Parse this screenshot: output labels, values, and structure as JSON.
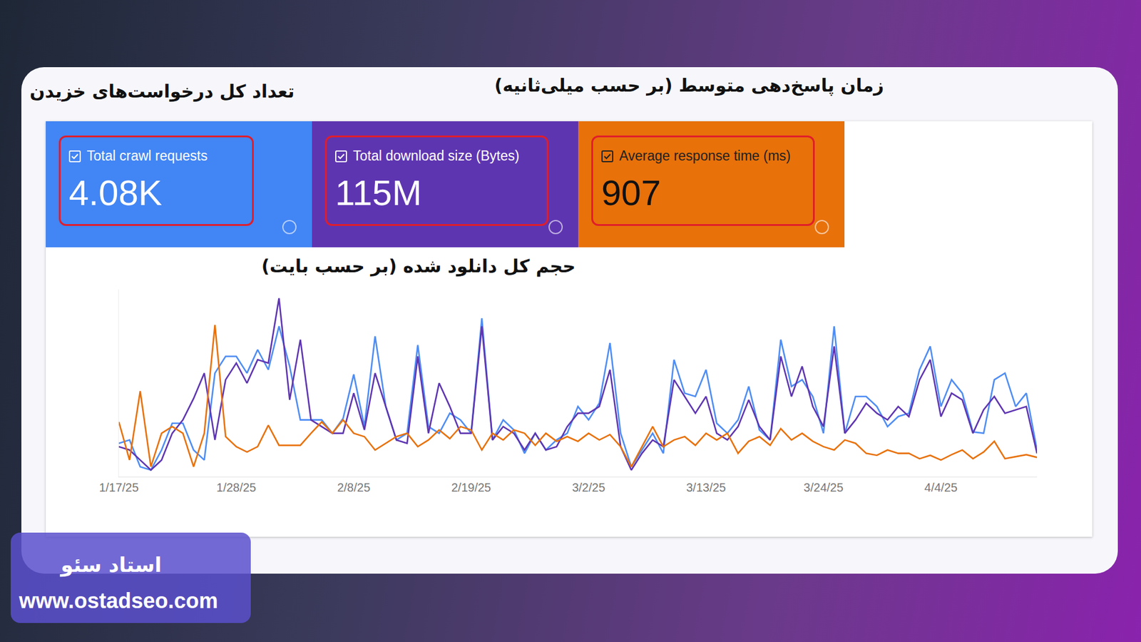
{
  "chart_data": {
    "type": "line",
    "x": [
      "2025-01-17",
      "2025-01-18",
      "2025-01-19",
      "2025-01-20",
      "2025-01-21",
      "2025-01-22",
      "2025-01-23",
      "2025-01-24",
      "2025-01-25",
      "2025-01-26",
      "2025-01-27",
      "2025-01-28",
      "2025-01-29",
      "2025-01-30",
      "2025-01-31",
      "2025-02-01",
      "2025-02-02",
      "2025-02-03",
      "2025-02-04",
      "2025-02-05",
      "2025-02-06",
      "2025-02-07",
      "2025-02-08",
      "2025-02-09",
      "2025-02-10",
      "2025-02-11",
      "2025-02-12",
      "2025-02-13",
      "2025-02-14",
      "2025-02-15",
      "2025-02-16",
      "2025-02-17",
      "2025-02-18",
      "2025-02-19",
      "2025-02-20",
      "2025-02-21",
      "2025-02-22",
      "2025-02-23",
      "2025-02-24",
      "2025-02-25",
      "2025-02-26",
      "2025-02-27",
      "2025-02-28",
      "2025-03-01",
      "2025-03-02",
      "2025-03-03",
      "2025-03-04",
      "2025-03-05",
      "2025-03-06",
      "2025-03-07",
      "2025-03-08",
      "2025-03-09",
      "2025-03-10",
      "2025-03-11",
      "2025-03-12",
      "2025-03-13",
      "2025-03-14",
      "2025-03-15",
      "2025-03-16",
      "2025-03-17",
      "2025-03-18",
      "2025-03-19",
      "2025-03-20",
      "2025-03-21",
      "2025-03-22",
      "2025-03-23",
      "2025-03-24",
      "2025-03-25",
      "2025-03-26",
      "2025-03-27",
      "2025-03-28",
      "2025-03-29",
      "2025-03-30",
      "2025-03-31",
      "2025-04-01",
      "2025-04-02",
      "2025-04-03",
      "2025-04-04",
      "2025-04-05",
      "2025-04-06",
      "2025-04-07",
      "2025-04-08",
      "2025-04-09",
      "2025-04-10",
      "2025-04-11",
      "2025-04-12",
      "2025-04-13"
    ],
    "series": [
      {
        "name": "Total crawl requests",
        "color": "#4e8df5",
        "values": [
          50,
          55,
          15,
          10,
          40,
          80,
          80,
          40,
          25,
          155,
          180,
          180,
          155,
          190,
          160,
          225,
          165,
          85,
          85,
          85,
          65,
          87,
          153,
          75,
          210,
          105,
          55,
          65,
          197,
          75,
          65,
          95,
          85,
          65,
          237,
          55,
          85,
          70,
          35,
          65,
          40,
          55,
          65,
          105,
          85,
          110,
          200,
          65,
          15,
          40,
          65,
          35,
          175,
          125,
          120,
          160,
          80,
          65,
          85,
          135,
          70,
          55,
          205,
          135,
          145,
          120,
          65,
          225,
          65,
          120,
          120,
          105,
          75,
          90,
          95,
          160,
          195,
          105,
          145,
          125,
          67,
          65,
          145,
          155,
          105,
          125,
          40
        ]
      },
      {
        "name": "Total download size (Bytes)",
        "color": "#5e35b1",
        "values": [
          45,
          40,
          25,
          10,
          25,
          65,
          85,
          117,
          155,
          55,
          145,
          170,
          140,
          175,
          170,
          267,
          115,
          205,
          85,
          75,
          65,
          65,
          125,
          70,
          155,
          105,
          55,
          50,
          180,
          65,
          140,
          105,
          65,
          65,
          225,
          55,
          75,
          65,
          40,
          65,
          40,
          45,
          75,
          95,
          95,
          105,
          160,
          45,
          10,
          35,
          55,
          45,
          145,
          120,
          95,
          120,
          65,
          55,
          75,
          115,
          75,
          55,
          180,
          120,
          165,
          105,
          75,
          195,
          65,
          85,
          110,
          95,
          85,
          105,
          90,
          145,
          175,
          90,
          125,
          115,
          65,
          100,
          120,
          95,
          100,
          105,
          35
        ]
      },
      {
        "name": "Average response time (ms)",
        "color": "#e8710a",
        "values": [
          82,
          25,
          128,
          15,
          65,
          75,
          65,
          15,
          65,
          227,
          60,
          45,
          37,
          45,
          77,
          47,
          47,
          47,
          65,
          82,
          65,
          85,
          65,
          60,
          40,
          50,
          60,
          65,
          45,
          55,
          70,
          57,
          75,
          70,
          40,
          65,
          55,
          70,
          65,
          47,
          65,
          53,
          60,
          53,
          65,
          55,
          63,
          45,
          15,
          45,
          75,
          45,
          55,
          60,
          47,
          65,
          55,
          65,
          35,
          53,
          60,
          47,
          72,
          55,
          65,
          53,
          45,
          40,
          55,
          50,
          35,
          32,
          40,
          35,
          35,
          27,
          32,
          25,
          33,
          40,
          27,
          37,
          53,
          27,
          30,
          33,
          29
        ]
      }
    ],
    "xlim": [
      "2025-01-17",
      "2025-04-13"
    ],
    "xticks": [
      {
        "value": "2025-01-17",
        "label": "1/17/25"
      },
      {
        "value": "2025-01-28",
        "label": "1/28/25"
      },
      {
        "value": "2025-02-08",
        "label": "2/8/25"
      },
      {
        "value": "2025-02-19",
        "label": "2/19/25"
      },
      {
        "value": "2025-03-02",
        "label": "3/2/25"
      },
      {
        "value": "2025-03-13",
        "label": "3/13/25"
      },
      {
        "value": "2025-03-24",
        "label": "3/24/25"
      },
      {
        "value": "2025-04-04",
        "label": "4/4/25"
      }
    ],
    "ylim": [
      0,
      280
    ],
    "yticks": [],
    "grid": false,
    "tick_labels": "x"
  },
  "tiles": [
    {
      "total": "4.08K",
      "caption": "تعداد کل درخواست‌های خزیدن"
    },
    {
      "total": "115M",
      "caption": "حجم کل دانلود شده (بر حسب بایت)"
    },
    {
      "total": "907",
      "caption": "زمان پاسخ‌دهی متوسط (بر حسب میلی‌ثانیه)"
    }
  ],
  "watermark": {
    "name": "استاد سئو",
    "url": "www.ostadseo.com"
  }
}
